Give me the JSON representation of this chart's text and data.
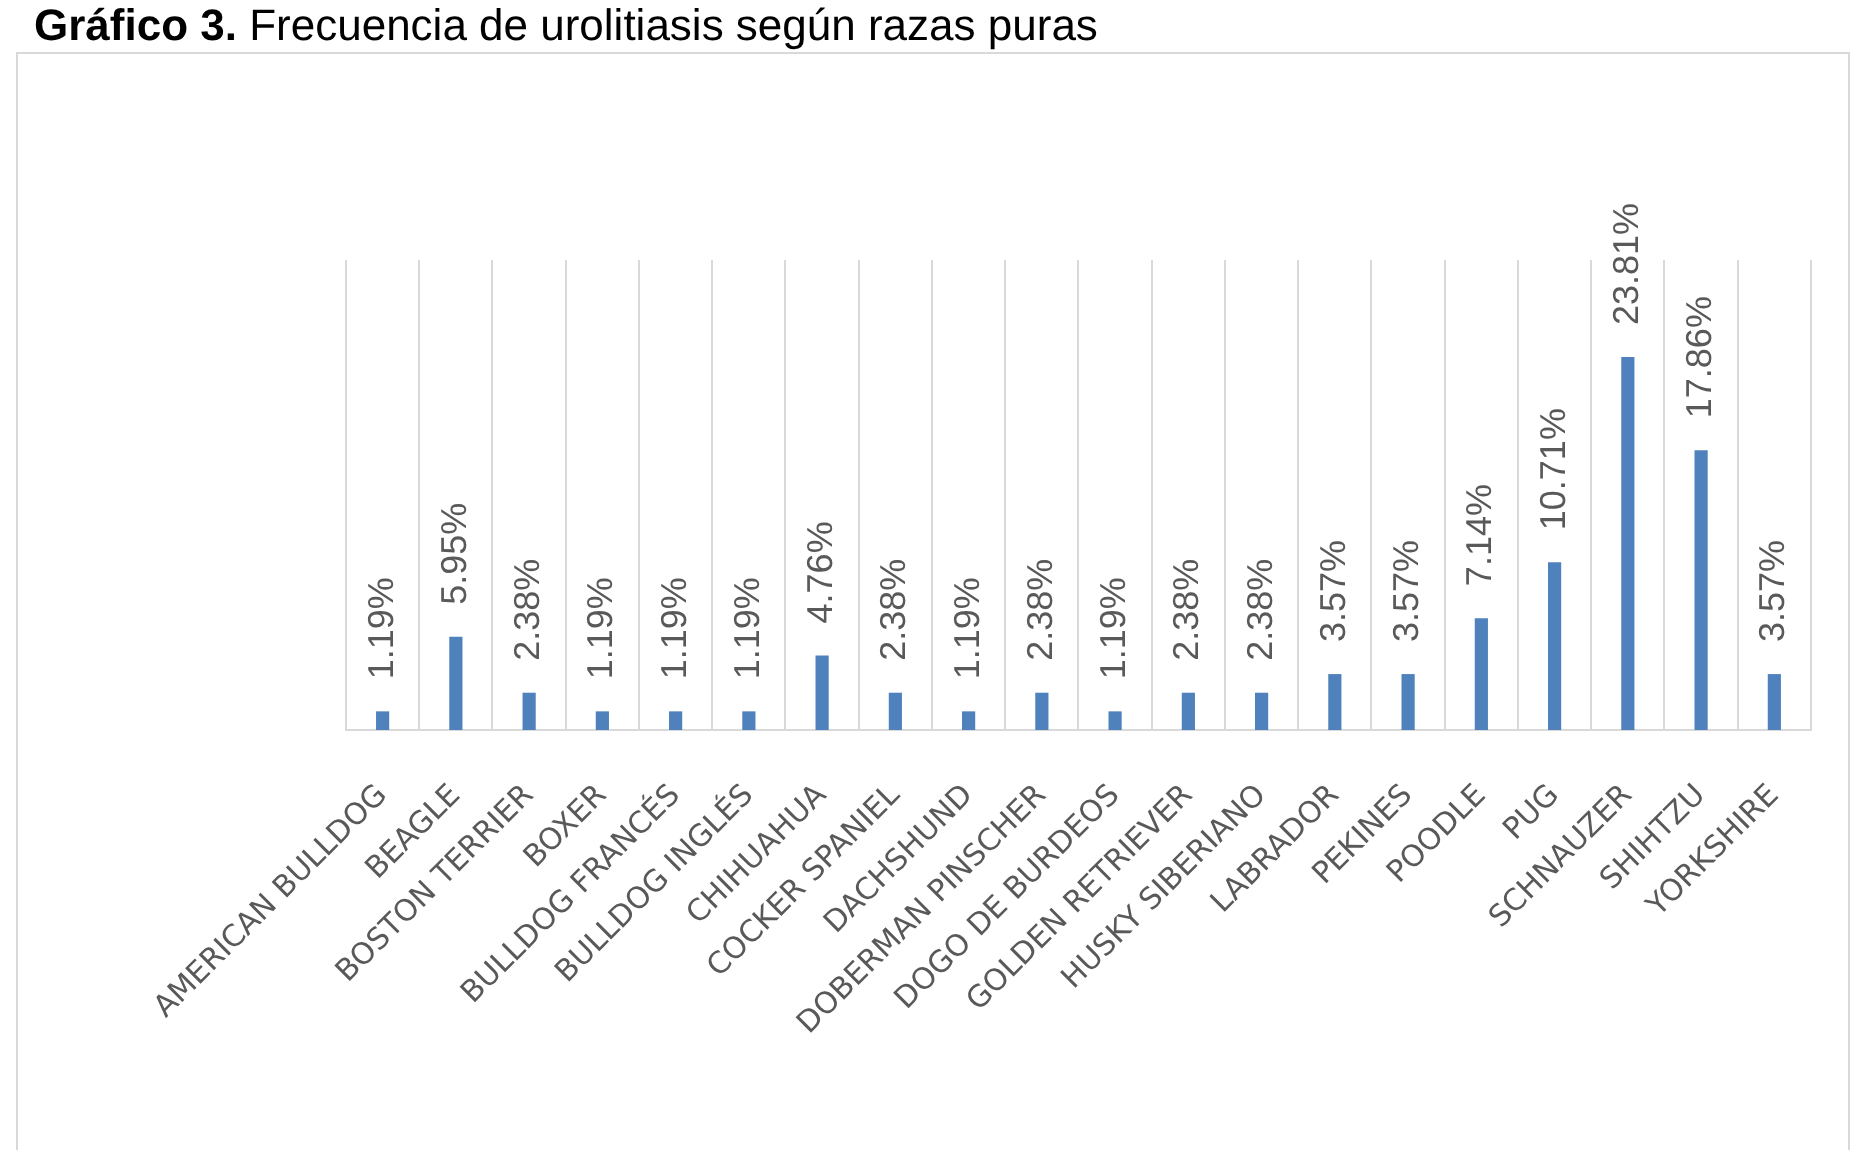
{
  "chart_data": {
    "type": "bar",
    "title": "Gráfico 3. Frecuencia de urolitiasis según razas puras",
    "categories": [
      "AMERICAN BULLDOG",
      "BEAGLE",
      "BOSTON TERRIER",
      "BOXER",
      "BULLDOG FRANCÉS",
      "BULLDOG INGLÉS",
      "CHIHUAHUA",
      "COCKER SPANIEL",
      "DACHSHUND",
      "DOBERMAN PINSCHER",
      "DOGO DE BURDEOS",
      "GOLDEN RETRIEVER",
      "HUSKY SIBERIANO",
      "LABRADOR",
      "PEKINES",
      "POODLE",
      "PUG",
      "SCHNAUZER",
      "SHIHTZU",
      "YORKSHIRE"
    ],
    "values": [
      1.19,
      5.95,
      2.38,
      1.19,
      1.19,
      1.19,
      4.76,
      2.38,
      1.19,
      2.38,
      1.19,
      2.38,
      2.38,
      3.57,
      3.57,
      7.14,
      10.71,
      23.81,
      17.86,
      3.57
    ],
    "value_labels": [
      "1.19%",
      "5.95%",
      "2.38%",
      "1.19%",
      "1.19%",
      "1.19%",
      "4.76%",
      "2.38%",
      "1.19%",
      "2.38%",
      "1.19%",
      "2.38%",
      "2.38%",
      "3.57%",
      "3.57%",
      "7.14%",
      "10.71%",
      "23.81%",
      "17.86%",
      "3.57%"
    ],
    "color": "#4f81bd",
    "ylim": [
      0,
      30
    ],
    "grid": "x",
    "tick_labels": "x"
  }
}
